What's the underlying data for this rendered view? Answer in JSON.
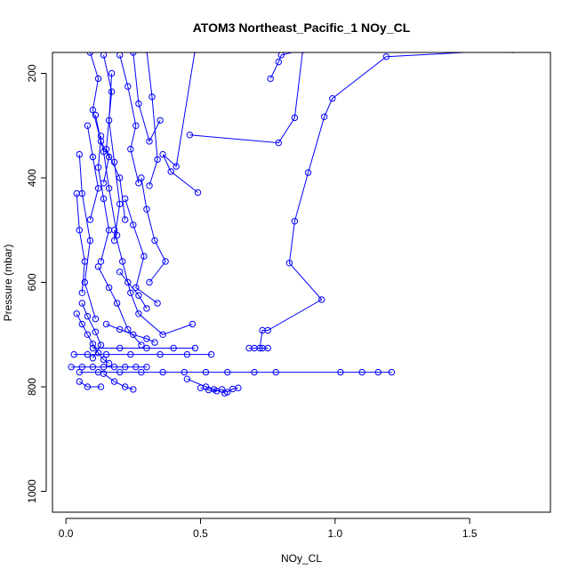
{
  "chart_data": {
    "type": "line",
    "title": "ATOM3 Northeast_Pacific_1 NOy_CL",
    "xlabel": "NOy_CL",
    "ylabel": "Pressure (mbar)",
    "xlim": [
      -0.05,
      1.8
    ],
    "ylim": [
      1040,
      160
    ],
    "y_reversed": true,
    "grid": false,
    "xticks": [
      0.0,
      0.5,
      1.0,
      1.5
    ],
    "xtick_labels": [
      "0.0",
      "0.5",
      "1.0",
      "1.5"
    ],
    "yticks": [
      200,
      400,
      600,
      800,
      1000
    ],
    "ytick_labels": [
      "200",
      "400",
      "600",
      "800",
      "1000"
    ],
    "series_color": "#0000ff",
    "series": [
      {
        "x": [
          1.66,
          1.19,
          0.99,
          0.96,
          0.9,
          0.85,
          0.83,
          0.95,
          0.75,
          0.73,
          0.72,
          0.73
        ],
        "y": [
          155,
          168,
          248,
          283,
          390,
          483,
          563,
          633,
          692,
          692,
          726,
          726
        ]
      },
      {
        "x": [
          0.75,
          0.7,
          0.68
        ],
        "y": [
          726,
          726,
          726
        ]
      },
      {
        "x": [
          0.88,
          0.85,
          0.79,
          0.46
        ],
        "y": [
          155,
          285,
          333,
          318
        ]
      },
      {
        "x": [
          0.76,
          0.79,
          0.8,
          0.88
        ],
        "y": [
          210,
          178,
          165,
          155
        ]
      },
      {
        "x": [
          0.48,
          0.41,
          0.36,
          0.39,
          0.49
        ],
        "y": [
          155,
          378,
          355,
          388,
          428
        ]
      },
      {
        "x": [
          0.3,
          0.32,
          0.34,
          0.31
        ],
        "y": [
          155,
          245,
          365,
          415
        ]
      },
      {
        "x": [
          0.25,
          0.27,
          0.31,
          0.35
        ],
        "y": [
          160,
          258,
          330,
          290
        ]
      },
      {
        "x": [
          0.2,
          0.23,
          0.26,
          0.24,
          0.27
        ],
        "y": [
          165,
          225,
          300,
          345,
          410
        ]
      },
      {
        "x": [
          0.14,
          0.17,
          0.15,
          0.2,
          0.22
        ],
        "y": [
          165,
          235,
          345,
          400,
          480
        ]
      },
      {
        "x": [
          0.09,
          0.12,
          0.1,
          0.14,
          0.16,
          0.19
        ],
        "y": [
          160,
          210,
          270,
          350,
          420,
          510
        ]
      },
      {
        "x": [
          0.05,
          0.06,
          0.09,
          0.07,
          0.11
        ],
        "y": [
          355,
          430,
          520,
          600,
          670
        ]
      },
      {
        "x": [
          0.04,
          0.05,
          0.07,
          0.06
        ],
        "y": [
          430,
          500,
          560,
          620
        ]
      },
      {
        "x": [
          0.11,
          0.13,
          0.16,
          0.14
        ],
        "y": [
          280,
          330,
          360,
          410
        ]
      },
      {
        "x": [
          0.28,
          0.3,
          0.33,
          0.37,
          0.31
        ],
        "y": [
          400,
          460,
          520,
          560,
          600
        ]
      },
      {
        "x": [
          0.22,
          0.25,
          0.29,
          0.26,
          0.34
        ],
        "y": [
          440,
          490,
          550,
          610,
          640
        ]
      },
      {
        "x": [
          0.18,
          0.21,
          0.24,
          0.27,
          0.36,
          0.47
        ],
        "y": [
          500,
          560,
          620,
          660,
          700,
          680
        ]
      },
      {
        "x": [
          0.12,
          0.16,
          0.19,
          0.23,
          0.28
        ],
        "y": [
          570,
          610,
          640,
          690,
          720
        ]
      },
      {
        "x": [
          0.06,
          0.08,
          0.11,
          0.13,
          0.1
        ],
        "y": [
          640,
          665,
          695,
          720,
          745
        ]
      },
      {
        "x": [
          0.04,
          0.06,
          0.08,
          0.1,
          0.12,
          0.14,
          0.16
        ],
        "y": [
          660,
          680,
          700,
          718,
          735,
          748,
          755
        ]
      },
      {
        "x": [
          0.03,
          0.08,
          0.15,
          0.24,
          0.35,
          0.45,
          0.54
        ],
        "y": [
          738,
          738,
          738,
          738,
          738,
          738,
          738
        ]
      },
      {
        "x": [
          0.1,
          0.2,
          0.3,
          0.4,
          0.48
        ],
        "y": [
          726,
          726,
          726,
          726,
          726
        ]
      },
      {
        "x": [
          0.02,
          0.06,
          0.1,
          0.14,
          0.18,
          0.22,
          0.26,
          0.3
        ],
        "y": [
          762,
          762,
          762,
          762,
          762,
          762,
          762,
          762
        ]
      },
      {
        "x": [
          0.05,
          0.12,
          0.2,
          0.28,
          0.36,
          0.44,
          0.52,
          0.6,
          0.7,
          0.78,
          1.02,
          1.1,
          1.16,
          1.21
        ],
        "y": [
          772,
          772,
          772,
          772,
          772,
          772,
          772,
          772,
          772,
          772,
          772,
          772,
          772,
          772
        ]
      },
      {
        "x": [
          0.14,
          0.18,
          0.22,
          0.25
        ],
        "y": [
          775,
          790,
          800,
          805
        ]
      },
      {
        "x": [
          0.05,
          0.08,
          0.13
        ],
        "y": [
          790,
          800,
          800
        ]
      },
      {
        "x": [
          0.5,
          0.53,
          0.56,
          0.58,
          0.6,
          0.62,
          0.64
        ],
        "y": [
          802,
          806,
          808,
          805,
          810,
          804,
          802
        ]
      },
      {
        "x": [
          0.45,
          0.52,
          0.55,
          0.59
        ],
        "y": [
          785,
          800,
          805,
          812
        ]
      },
      {
        "x": [
          0.15,
          0.2,
          0.25,
          0.3,
          0.33
        ],
        "y": [
          680,
          690,
          700,
          708,
          715
        ]
      },
      {
        "x": [
          0.2,
          0.23,
          0.27,
          0.3
        ],
        "y": [
          580,
          600,
          625,
          650
        ]
      },
      {
        "x": [
          0.13,
          0.12,
          0.14,
          0.16,
          0.13
        ],
        "y": [
          320,
          380,
          440,
          500,
          560
        ]
      },
      {
        "x": [
          0.17,
          0.16,
          0.18,
          0.2,
          0.18
        ],
        "y": [
          200,
          290,
          370,
          450,
          520
        ]
      },
      {
        "x": [
          0.08,
          0.1,
          0.12,
          0.09
        ],
        "y": [
          300,
          360,
          420,
          480
        ]
      }
    ]
  }
}
